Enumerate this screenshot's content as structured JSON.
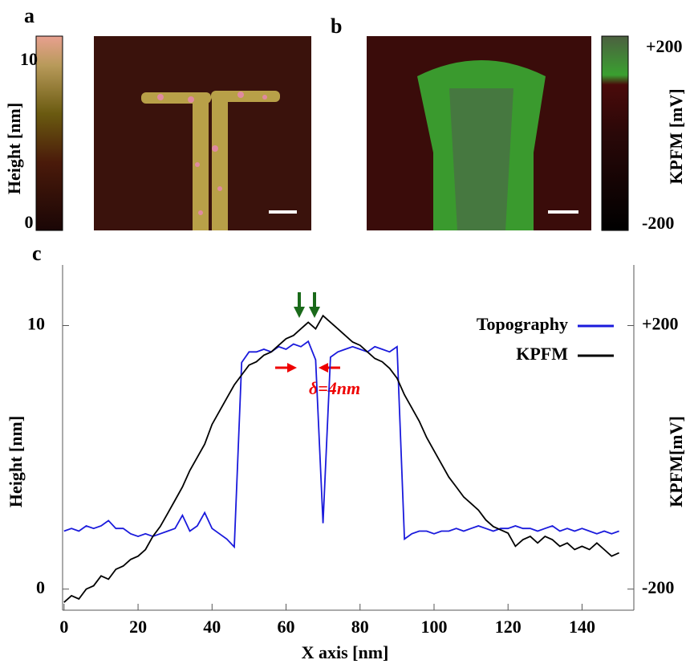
{
  "panel_a": {
    "label": "a",
    "colorbar_max": "10",
    "colorbar_min": "0",
    "axis_label": "Height [nm]"
  },
  "panel_b": {
    "label": "b",
    "colorbar_max": "+200",
    "colorbar_min": "-200",
    "axis_label": "KPFM [mV]"
  },
  "chart_data": {
    "type": "line",
    "panel_label": "c",
    "xlabel": "X axis [nm]",
    "ylabel": "Height [nm]",
    "y2label": "KPFM[mV]",
    "annotation": "δ=4nm",
    "legend": "top-right",
    "x": [
      0,
      2,
      4,
      6,
      8,
      10,
      12,
      14,
      16,
      18,
      20,
      22,
      24,
      26,
      28,
      30,
      32,
      34,
      36,
      38,
      40,
      42,
      44,
      46,
      48,
      50,
      52,
      54,
      56,
      58,
      60,
      62,
      64,
      66,
      68,
      70,
      72,
      74,
      76,
      78,
      80,
      82,
      84,
      86,
      88,
      90,
      92,
      94,
      96,
      98,
      100,
      102,
      104,
      106,
      108,
      110,
      112,
      114,
      116,
      118,
      120,
      122,
      124,
      126,
      128,
      130,
      132,
      134,
      136,
      138,
      140,
      142,
      144,
      146,
      148,
      150
    ],
    "series": [
      {
        "name": "Topography",
        "color": "#1a1adc",
        "values": [
          2.2,
          2.3,
          2.2,
          2.4,
          2.3,
          2.4,
          2.6,
          2.3,
          2.3,
          2.1,
          2.0,
          2.1,
          2.0,
          2.1,
          2.2,
          2.3,
          2.8,
          2.2,
          2.4,
          2.9,
          2.3,
          2.1,
          1.9,
          1.6,
          8.6,
          9.0,
          9.0,
          9.1,
          9.0,
          9.2,
          9.1,
          9.3,
          9.2,
          9.4,
          8.7,
          2.5,
          8.8,
          9.0,
          9.1,
          9.2,
          9.1,
          9.0,
          9.2,
          9.1,
          9.0,
          9.2,
          1.9,
          2.1,
          2.2,
          2.2,
          2.1,
          2.2,
          2.2,
          2.3,
          2.2,
          2.3,
          2.4,
          2.3,
          2.2,
          2.3,
          2.3,
          2.4,
          2.3,
          2.3,
          2.2,
          2.3,
          2.4,
          2.2,
          2.3,
          2.2,
          2.3,
          2.2,
          2.1,
          2.2,
          2.1,
          2.2
        ]
      },
      {
        "name": "KPFM",
        "color": "#000000",
        "axis": "y2",
        "values": [
          -220,
          -210,
          -215,
          -200,
          -195,
          -180,
          -185,
          -170,
          -165,
          -155,
          -150,
          -140,
          -120,
          -105,
          -85,
          -65,
          -45,
          -20,
          0,
          20,
          50,
          70,
          90,
          110,
          125,
          140,
          145,
          155,
          160,
          170,
          180,
          185,
          195,
          205,
          195,
          215,
          205,
          195,
          185,
          175,
          170,
          160,
          150,
          145,
          135,
          120,
          95,
          75,
          55,
          30,
          10,
          -10,
          -30,
          -45,
          -60,
          -70,
          -80,
          -95,
          -105,
          -110,
          -115,
          -135,
          -125,
          -120,
          -130,
          -120,
          -125,
          -135,
          -130,
          -140,
          -135,
          -140,
          -130,
          -140,
          -150,
          -145
        ]
      }
    ],
    "xlim": [
      -0.4,
      154
    ],
    "xticks": [
      0,
      20,
      40,
      60,
      80,
      100,
      120,
      140
    ],
    "ylim": [
      -0.8,
      12.3
    ],
    "yticks": [
      0,
      10
    ],
    "y2lim": [
      -232,
      292
    ],
    "y2ticks": [
      {
        "value": 200,
        "label": "+200"
      },
      -200
    ]
  }
}
